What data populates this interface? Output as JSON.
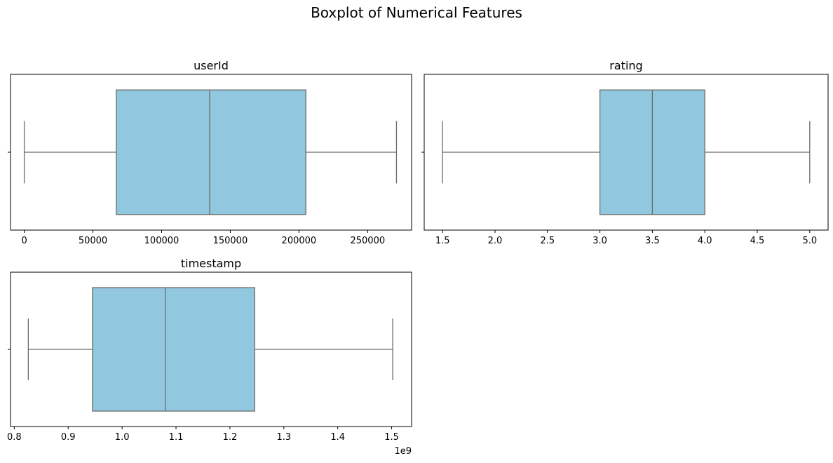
{
  "title": "Boxplot of Numerical Features",
  "chart_data": [
    {
      "type": "box",
      "title": "userId",
      "xlim": [
        -10000,
        282000
      ],
      "xticks": [
        0,
        50000,
        100000,
        150000,
        200000,
        250000
      ],
      "xtick_labels": [
        "0",
        "50000",
        "100000",
        "150000",
        "200000",
        "250000"
      ],
      "offset_label": "",
      "box": {
        "whisker_low": 1,
        "q1": 67000,
        "median": 135000,
        "q3": 205000,
        "whisker_high": 271000
      },
      "color": "#92c8df",
      "edge_color": "#6b6b6b"
    },
    {
      "type": "box",
      "title": "rating",
      "xlim": [
        1.325,
        5.175
      ],
      "xticks": [
        1.5,
        2.0,
        2.5,
        3.0,
        3.5,
        4.0,
        4.5,
        5.0
      ],
      "xtick_labels": [
        "1.5",
        "2.0",
        "2.5",
        "3.0",
        "3.5",
        "4.0",
        "4.5",
        "5.0"
      ],
      "offset_label": "",
      "box": {
        "whisker_low": 1.5,
        "q1": 3.0,
        "median": 3.5,
        "q3": 4.0,
        "whisker_high": 5.0
      },
      "color": "#92c8df",
      "edge_color": "#6b6b6b"
    },
    {
      "type": "box",
      "title": "timestamp",
      "xlim": [
        0.793,
        1.537
      ],
      "xticks": [
        0.8,
        0.9,
        1.0,
        1.1,
        1.2,
        1.3,
        1.4,
        1.5
      ],
      "xtick_labels": [
        "0.8",
        "0.9",
        "1.0",
        "1.1",
        "1.2",
        "1.3",
        "1.4",
        "1.5"
      ],
      "offset_label": "1e9",
      "box": {
        "whisker_low": 0.826,
        "q1": 0.945,
        "median": 1.08,
        "q3": 1.246,
        "whisker_high": 1.502
      },
      "color": "#92c8df",
      "edge_color": "#6b6b6b"
    }
  ]
}
